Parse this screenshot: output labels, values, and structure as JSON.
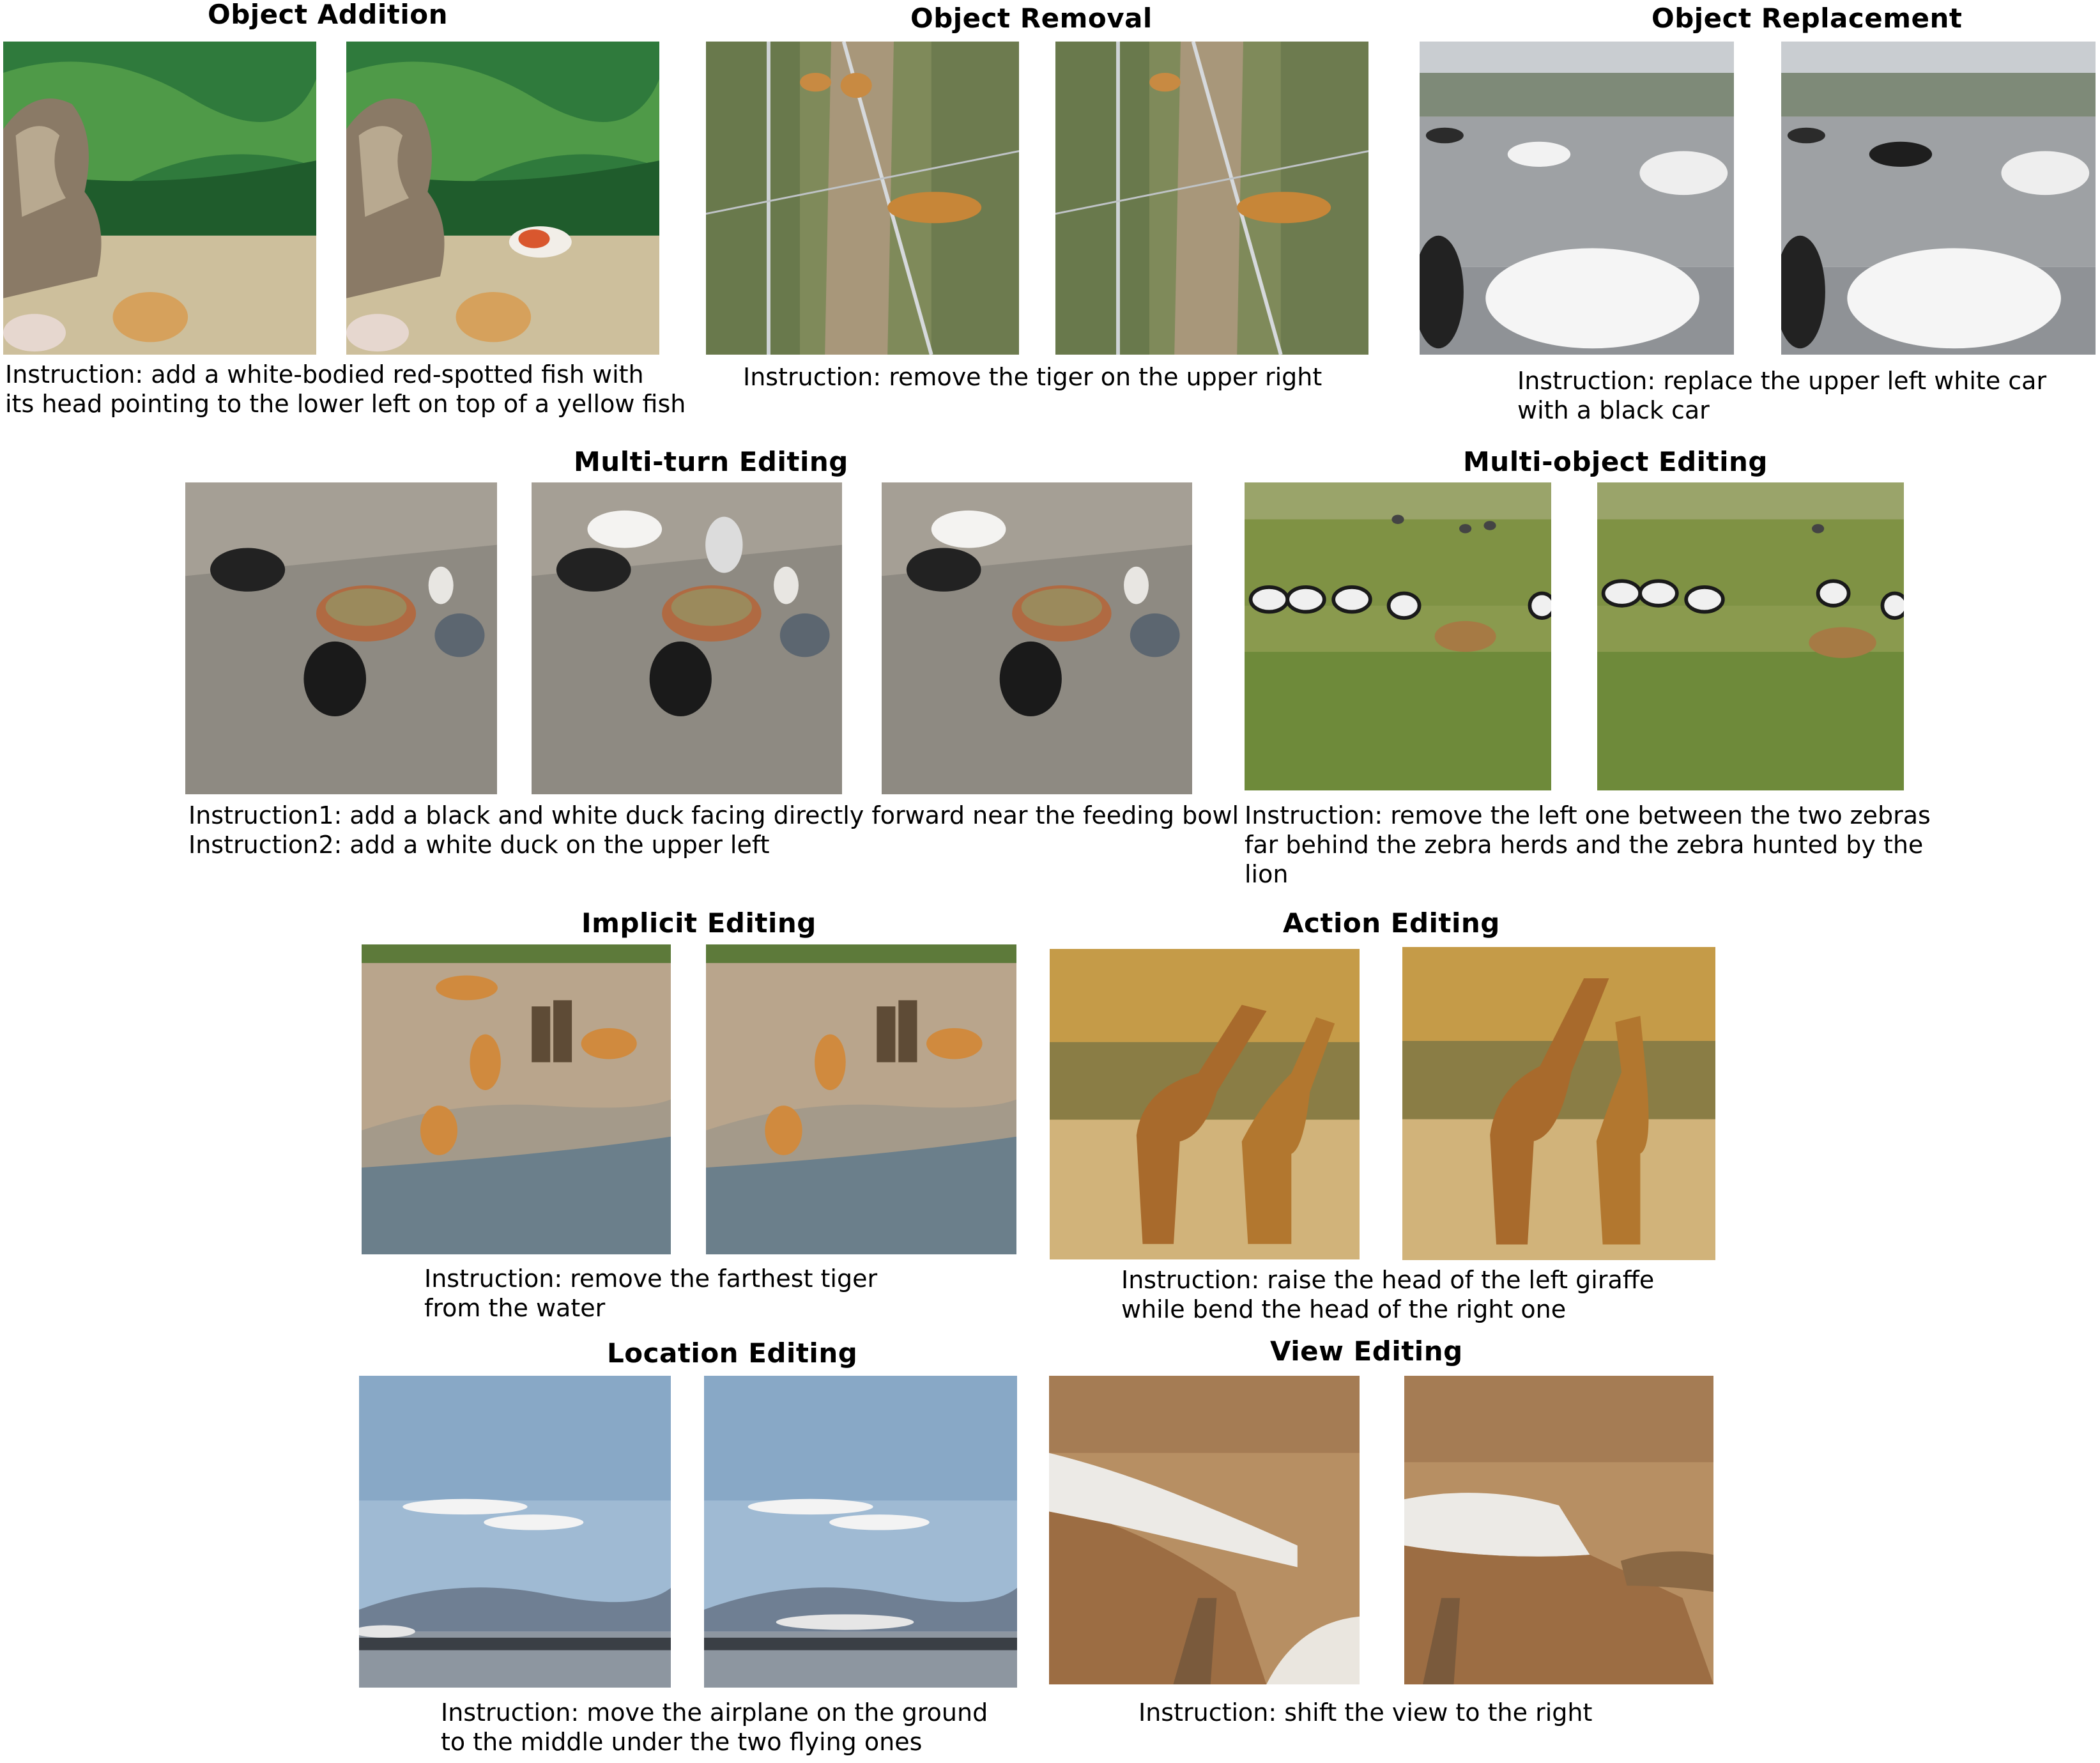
{
  "sections": {
    "addition": {
      "title": "Object Addition",
      "caption": [
        "Instruction: add a white-bodied red-spotted fish with",
        "its head pointing to the lower left on top of a yellow fish"
      ]
    },
    "removal": {
      "title": "Object Removal",
      "caption": [
        "Instruction: remove the tiger on the upper right"
      ]
    },
    "replacement": {
      "title": "Object Replacement",
      "caption": [
        "Instruction: replace the upper left white car",
        "with a black car"
      ]
    },
    "multiturn": {
      "title": "Multi-turn Editing",
      "caption": [
        "Instruction1: add a black and white duck facing directly forward near the feeding bowl",
        "Instruction2: add a white duck on the upper left"
      ]
    },
    "multiobject": {
      "title": "Multi-object Editing",
      "caption": [
        "Instruction: remove the left one between the two zebras",
        "far behind the zebra herds and the zebra hunted  by the",
        "lion"
      ]
    },
    "implicit": {
      "title": "Implicit Editing",
      "caption": [
        "Instruction: remove the farthest tiger",
        "from the water"
      ]
    },
    "action": {
      "title": "Action Editing",
      "caption": [
        "Instruction: raise the head of the left giraffe",
        "while bend the head of the right one"
      ]
    },
    "location": {
      "title": "Location Editing",
      "caption": [
        "Instruction: move the airplane on the ground",
        "to the middle under the two flying ones"
      ]
    },
    "view": {
      "title": "View Editing",
      "caption": [
        "Instruction: shift the view to the right"
      ]
    }
  }
}
